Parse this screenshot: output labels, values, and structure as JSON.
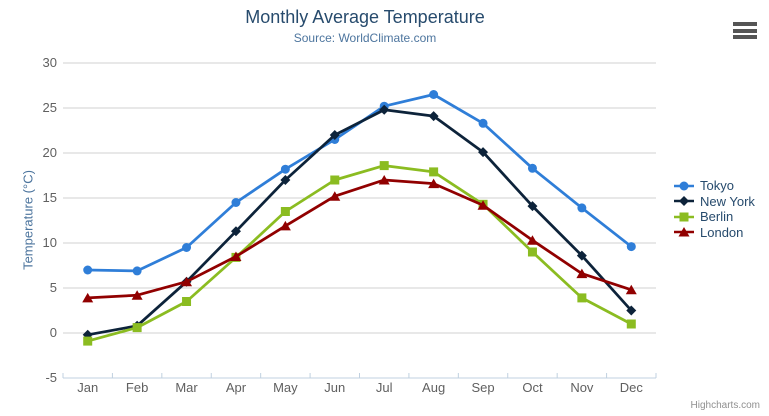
{
  "chart_data": {
    "type": "line",
    "title": "Monthly Average Temperature",
    "subtitle": "Source: WorldClimate.com",
    "xlabel": "",
    "ylabel": "Temperature (°C)",
    "categories": [
      "Jan",
      "Feb",
      "Mar",
      "Apr",
      "May",
      "Jun",
      "Jul",
      "Aug",
      "Sep",
      "Oct",
      "Nov",
      "Dec"
    ],
    "ylim": [
      -5,
      30
    ],
    "yticks": [
      -5,
      0,
      5,
      10,
      15,
      20,
      25,
      30
    ],
    "grid": true,
    "legend_position": "right-middle",
    "series": [
      {
        "name": "Tokyo",
        "color": "#2f7ed8",
        "marker": "circle",
        "values": [
          7.0,
          6.9,
          9.5,
          14.5,
          18.2,
          21.5,
          25.2,
          26.5,
          23.3,
          18.3,
          13.9,
          9.6
        ]
      },
      {
        "name": "New York",
        "color": "#0d233a",
        "marker": "diamond",
        "values": [
          -0.2,
          0.8,
          5.7,
          11.3,
          17.0,
          22.0,
          24.8,
          24.1,
          20.1,
          14.1,
          8.6,
          2.5
        ]
      },
      {
        "name": "Berlin",
        "color": "#8bbc21",
        "marker": "square",
        "values": [
          -0.9,
          0.6,
          3.5,
          8.4,
          13.5,
          17.0,
          18.6,
          17.9,
          14.3,
          9.0,
          3.9,
          1.0
        ]
      },
      {
        "name": "London",
        "color": "#910000",
        "marker": "triangle",
        "values": [
          3.9,
          4.2,
          5.7,
          8.5,
          11.9,
          15.2,
          17.0,
          16.6,
          14.2,
          10.3,
          6.6,
          4.8
        ]
      }
    ]
  },
  "credits": {
    "label": "Highcharts.com"
  },
  "toolbar": {
    "context_menu_icon": "hamburger-menu-icon"
  },
  "colors": {
    "title": "#274b6d",
    "subtitle": "#4d759e",
    "axis_title": "#4d759e",
    "axis_label": "#606060",
    "grid_line": "#d2d2d2",
    "axis_line": "#c0d0e0",
    "legend_text": "#274b6d",
    "credits_text": "#909090",
    "burger": "#555555"
  }
}
